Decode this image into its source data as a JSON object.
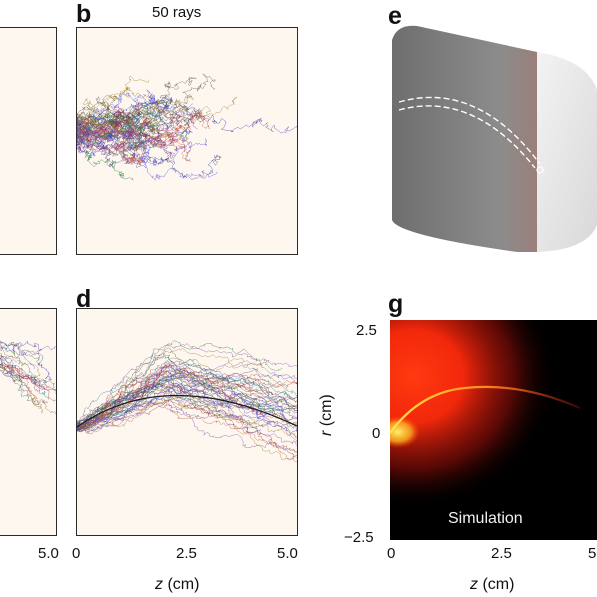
{
  "panels": {
    "b": {
      "letter": "b",
      "title": "50 rays"
    },
    "d": {
      "letter": "d"
    },
    "e": {
      "letter": "e"
    },
    "g": {
      "letter": "g",
      "annotation": "Simulation"
    }
  },
  "axes": {
    "c_x_tick_right": "5.0",
    "d_x_ticks": [
      "0",
      "2.5",
      "5.0"
    ],
    "d_x_title_var": "z",
    "d_x_title_unit": " (cm)",
    "g_y_ticks": [
      "2.5",
      "0",
      "−2.5"
    ],
    "g_y_title_var": "r",
    "g_y_title_unit": " (cm)",
    "g_x_ticks": [
      "0",
      "2.5",
      "5"
    ],
    "g_x_title_var": "z",
    "g_x_title_unit": " (cm)"
  },
  "colors": {
    "panel_bg": "#fdf7f0",
    "heat_core": "#ffe94a",
    "heat_mid": "#ff3a10",
    "heat_bg": "#000000"
  },
  "chart_data": [
    {
      "type": "scatter",
      "panel": "b",
      "title": "50 rays",
      "description_series": "random-walk ray traces",
      "xlim": [
        0,
        5.0
      ],
      "ylim": [
        -2.5,
        2.5
      ]
    },
    {
      "type": "scatter",
      "panel": "d",
      "x_ticks": [
        0,
        2.5,
        5.0
      ],
      "xlabel": "z (cm)",
      "xlim": [
        0,
        5.0
      ]
    },
    {
      "type": "heatmap",
      "panel": "g",
      "annotation": "Simulation",
      "xlabel": "z (cm)",
      "ylabel": "r (cm)",
      "x_ticks": [
        0,
        2.5,
        5
      ],
      "y_ticks": [
        2.5,
        0,
        -2.5
      ],
      "xlim": [
        0,
        5
      ],
      "ylim": [
        -2.5,
        2.5
      ]
    }
  ]
}
